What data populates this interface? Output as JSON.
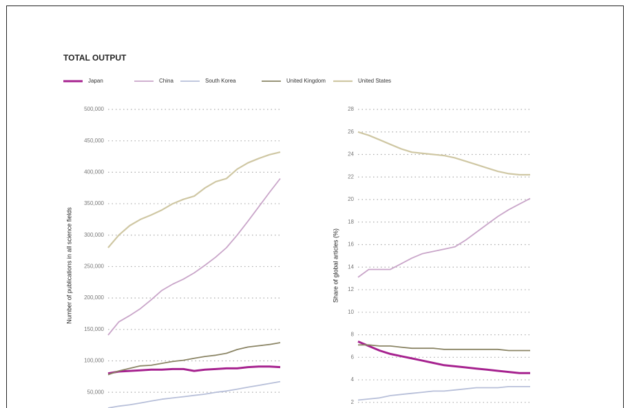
{
  "title": "TOTAL OUTPUT",
  "chart_data": [
    {
      "type": "line",
      "y_label": "Number of publications in all science fields",
      "categories": [
        null,
        null,
        null,
        null,
        null,
        null,
        null,
        null,
        null,
        null,
        null,
        null,
        null,
        null,
        null,
        null,
        null
      ],
      "ylim": [
        25000,
        500000
      ],
      "yticks": [
        {
          "value": 50000,
          "label": "50,000"
        },
        {
          "value": 100000,
          "label": "100,000"
        },
        {
          "value": 150000,
          "label": "150,000"
        },
        {
          "value": 200000,
          "label": "200,000"
        },
        {
          "value": 250000,
          "label": "250,000"
        },
        {
          "value": 300000,
          "label": "300,000"
        },
        {
          "value": 350000,
          "label": "350,000"
        },
        {
          "value": 400000,
          "label": "400,000"
        },
        {
          "value": 450000,
          "label": "450,000"
        },
        {
          "value": 500000,
          "label": "500,000"
        }
      ],
      "grid": true,
      "series": [
        {
          "name": "Japan",
          "color": "#a6228f",
          "width": 3,
          "values": [
            80000,
            83000,
            84000,
            85000,
            86000,
            86000,
            87000,
            87000,
            84000,
            86000,
            87000,
            88000,
            88000,
            90000,
            91000,
            91000,
            90000
          ]
        },
        {
          "name": "China",
          "color": "#c9a5c9",
          "width": 1.8,
          "values": [
            141000,
            162000,
            172000,
            183000,
            197000,
            212000,
            222000,
            230000,
            240000,
            252000,
            265000,
            280000,
            300000,
            322000,
            345000,
            368000,
            390000
          ]
        },
        {
          "name": "South Korea",
          "color": "#b7bfd9",
          "width": 1.8,
          "values": [
            25000,
            28000,
            30000,
            33000,
            36000,
            39000,
            41000,
            43000,
            45000,
            47000,
            50000,
            52000,
            55000,
            58000,
            61000,
            64000,
            67000
          ]
        },
        {
          "name": "United Kingdom",
          "color": "#8a8464",
          "width": 1.8,
          "values": [
            78000,
            84000,
            88000,
            92000,
            93000,
            96000,
            99000,
            101000,
            104000,
            107000,
            109000,
            112000,
            118000,
            122000,
            124000,
            126000,
            129000
          ]
        },
        {
          "name": "United States",
          "color": "#cfc7a3",
          "width": 2.2,
          "values": [
            280000,
            300000,
            315000,
            325000,
            332000,
            340000,
            350000,
            357000,
            362000,
            375000,
            385000,
            390000,
            405000,
            415000,
            422000,
            428000,
            432000
          ]
        }
      ]
    },
    {
      "type": "line",
      "y_label": "Share of global articles (%)",
      "categories": [
        null,
        null,
        null,
        null,
        null,
        null,
        null,
        null,
        null,
        null,
        null,
        null,
        null,
        null,
        null,
        null,
        null
      ],
      "ylim": [
        1.5,
        28
      ],
      "yticks": [
        2,
        4,
        6,
        8,
        10,
        12,
        14,
        16,
        18,
        20,
        22,
        24,
        26,
        28
      ],
      "grid": true,
      "series": [
        {
          "color": "#a6228f",
          "width": 3,
          "values": [
            7.4,
            7.0,
            6.6,
            6.3,
            6.1,
            5.9,
            5.7,
            5.5,
            5.3,
            5.2,
            5.1,
            5.0,
            4.9,
            4.8,
            4.7,
            4.6,
            4.6
          ]
        },
        {
          "color": "#c9a5c9",
          "width": 1.8,
          "values": [
            13.1,
            13.8,
            13.8,
            13.8,
            14.3,
            14.8,
            15.2,
            15.4,
            15.6,
            15.8,
            16.4,
            17.1,
            17.8,
            18.5,
            19.1,
            19.6,
            20.1
          ]
        },
        {
          "color": "#b7bfd9",
          "width": 1.8,
          "values": [
            2.2,
            2.3,
            2.4,
            2.6,
            2.7,
            2.8,
            2.9,
            3.0,
            3.0,
            3.1,
            3.2,
            3.3,
            3.3,
            3.3,
            3.4,
            3.4,
            3.4
          ]
        },
        {
          "color": "#8a8464",
          "width": 1.8,
          "values": [
            7.1,
            7.1,
            7.0,
            7.0,
            6.9,
            6.8,
            6.8,
            6.8,
            6.7,
            6.7,
            6.7,
            6.7,
            6.7,
            6.7,
            6.6,
            6.6,
            6.6
          ]
        },
        {
          "color": "#cfc7a3",
          "width": 2.2,
          "values": [
            26,
            25.7,
            25.3,
            24.9,
            24.5,
            24.2,
            24.1,
            24.0,
            23.9,
            23.7,
            23.4,
            23.1,
            22.8,
            22.5,
            22.3,
            22.2,
            22.2
          ]
        }
      ]
    }
  ]
}
